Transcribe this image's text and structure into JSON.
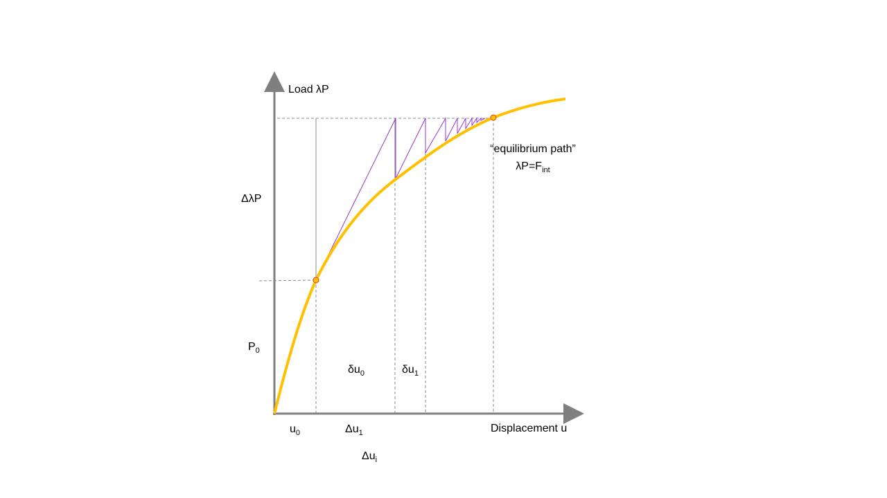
{
  "axes": {
    "y_label": "Load λP",
    "x_label": "Displacement u"
  },
  "labels": {
    "delta_lambda_p": "ΔλP",
    "p0": {
      "text": "P",
      "sub": "0"
    },
    "du0": {
      "text": "δu",
      "sub": "0"
    },
    "du1": {
      "text": "δu",
      "sub": "1"
    },
    "u0": {
      "text": "u",
      "sub": "0"
    },
    "Du1": {
      "text": "Δu",
      "sub": "1"
    },
    "Dui": {
      "text": "Δu",
      "sub": "i"
    }
  },
  "annotation": {
    "line1": "“equilibrium path”",
    "line2": {
      "text": "λP=F",
      "sub": "int"
    }
  }
}
